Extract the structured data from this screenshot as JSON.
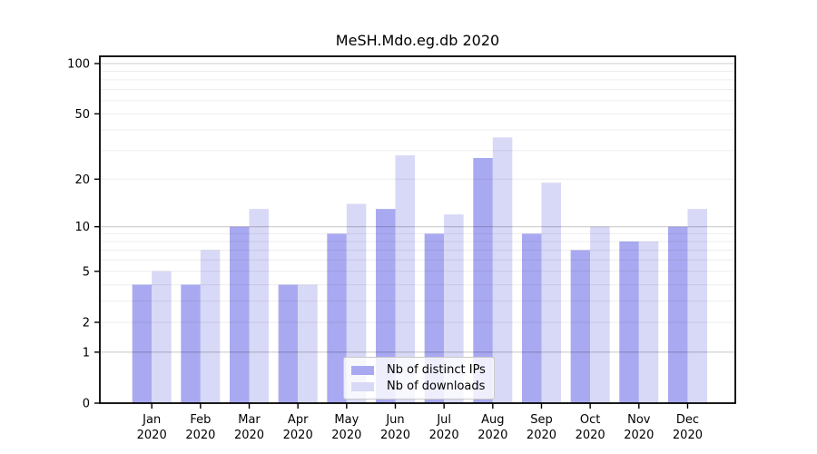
{
  "chart_data": {
    "type": "bar",
    "title": "MeSH.Mdo.eg.db 2020",
    "categories": [
      "Jan",
      "Feb",
      "Mar",
      "Apr",
      "May",
      "Jun",
      "Jul",
      "Aug",
      "Sep",
      "Oct",
      "Nov",
      "Dec"
    ],
    "x_sub_label": "2020",
    "series": [
      {
        "name": "Nb of distinct IPs",
        "color": "#a9a9f1",
        "values": [
          4,
          4,
          10,
          4,
          9,
          13,
          9,
          27,
          9,
          7,
          8,
          10
        ]
      },
      {
        "name": "Nb of downloads",
        "color": "#d8d8f7",
        "values": [
          5,
          7,
          13,
          4,
          14,
          28,
          12,
          36,
          19,
          10,
          8,
          13
        ]
      }
    ],
    "yscale": "log1p",
    "ylim": [
      0,
      100
    ],
    "yticks": [
      0,
      1,
      2,
      5,
      10,
      20,
      50,
      100
    ],
    "major_gridlines": [
      1,
      10,
      100
    ],
    "minor_gridlines": [
      2,
      3,
      4,
      5,
      6,
      7,
      8,
      9,
      20,
      30,
      40,
      50,
      60,
      70,
      80,
      90
    ],
    "grid": true,
    "legend_position": "lower center"
  }
}
